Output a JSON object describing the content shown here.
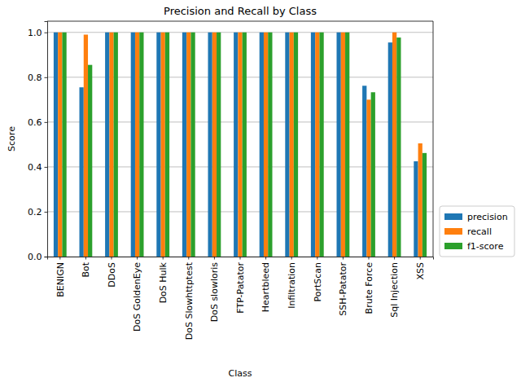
{
  "chart_data": {
    "type": "bar",
    "title": "Precision and Recall by Class",
    "x_label": "Class",
    "y_label": "Score",
    "categories": [
      "BENIGN",
      "Bot",
      "DDoS",
      "DoS GoldenEye",
      "DoS Hulk",
      "DoS Slowhttptest",
      "DoS slowloris",
      "FTP-Patator",
      "Heartbleed",
      "Infiltration",
      "PortScan",
      "SSH-Patator",
      "Brute Force",
      "Sql Injection",
      "XSS"
    ],
    "series": [
      {
        "name": "precision",
        "color": "#1f77b4",
        "values": [
          1.0,
          0.755,
          1.0,
          1.0,
          1.0,
          1.0,
          1.0,
          1.0,
          1.0,
          1.0,
          1.0,
          1.0,
          0.762,
          0.955,
          0.425
        ]
      },
      {
        "name": "recall",
        "color": "#ff7f0e",
        "values": [
          1.0,
          0.99,
          1.0,
          1.0,
          1.0,
          1.0,
          1.0,
          1.0,
          1.0,
          1.0,
          1.0,
          1.0,
          0.7,
          1.0,
          0.505
        ]
      },
      {
        "name": "f1-score",
        "color": "#2ca02c",
        "values": [
          1.0,
          0.855,
          1.0,
          1.0,
          1.0,
          1.0,
          1.0,
          1.0,
          1.0,
          1.0,
          1.0,
          1.0,
          0.733,
          0.977,
          0.462
        ]
      }
    ],
    "ylim": [
      0,
      1.05
    ],
    "yticks": [
      {
        "value": 0,
        "label": "0.0"
      },
      0.2,
      0.4,
      0.6,
      0.8,
      {
        "value": 1,
        "label": "1.0"
      }
    ],
    "grid": true,
    "legend": "lower right"
  }
}
